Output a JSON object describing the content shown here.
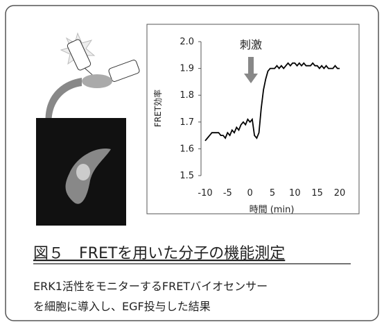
{
  "chart_data": {
    "type": "line",
    "ylabel": "FRET効率",
    "xlabel": "時間 (min)",
    "annotation": "刺激",
    "color": "#000000",
    "x": [
      -10,
      -9.5,
      -9,
      -8.5,
      -8,
      -7.5,
      -7,
      -6.5,
      -6,
      -5.5,
      -5,
      -4.5,
      -4,
      -3.5,
      -3,
      -2.5,
      -2,
      -1.5,
      -1,
      -0.5,
      0,
      0.5,
      1,
      1.5,
      2,
      2.5,
      3,
      3.5,
      4,
      4.5,
      5,
      5.5,
      6,
      6.5,
      7,
      7.5,
      8,
      8.5,
      9,
      9.5,
      10,
      10.5,
      11,
      11.5,
      12,
      12.5,
      13,
      13.5,
      14,
      14.5,
      15,
      15.5,
      16,
      16.5,
      17,
      17.5,
      18,
      18.5,
      19,
      19.5,
      20
    ],
    "values": [
      1.63,
      1.64,
      1.65,
      1.66,
      1.66,
      1.66,
      1.66,
      1.65,
      1.65,
      1.64,
      1.66,
      1.65,
      1.67,
      1.66,
      1.68,
      1.67,
      1.69,
      1.7,
      1.69,
      1.71,
      1.7,
      1.71,
      1.65,
      1.64,
      1.66,
      1.75,
      1.82,
      1.86,
      1.89,
      1.9,
      1.9,
      1.9,
      1.91,
      1.9,
      1.91,
      1.9,
      1.91,
      1.92,
      1.91,
      1.92,
      1.92,
      1.91,
      1.92,
      1.91,
      1.92,
      1.91,
      1.91,
      1.91,
      1.92,
      1.91,
      1.91,
      1.9,
      1.91,
      1.9,
      1.91,
      1.9,
      1.9,
      1.9,
      1.91,
      1.9,
      1.9
    ],
    "xlim": [
      -10,
      20
    ],
    "xticks": [
      -10,
      -5,
      0,
      5,
      10,
      15,
      20
    ],
    "ylim": [
      1.5,
      2.0
    ],
    "yticks": [
      1.5,
      1.6,
      1.7,
      1.8,
      1.9,
      {
        "value": 2.0,
        "label": "2.0"
      }
    ]
  },
  "caption": "図５　FRETを用いた分子の機能測定",
  "description": [
    "ERK1活性をモニターするFRETバイオセンサー",
    "を細胞に導入し、EGF投与した結果"
  ]
}
